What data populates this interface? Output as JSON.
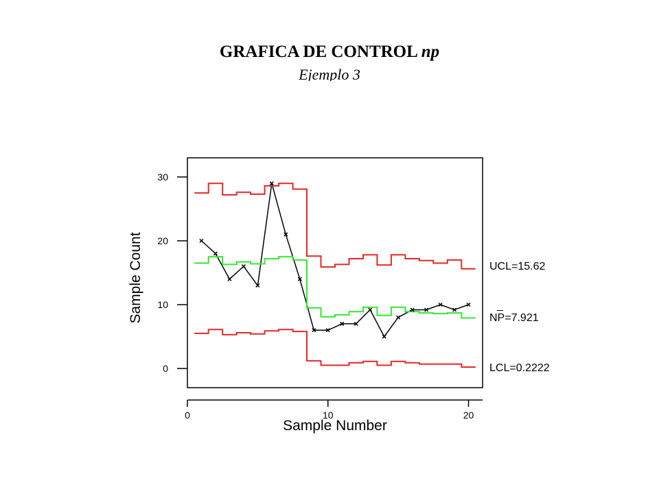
{
  "title": {
    "main": "GRAFICA DE CONTROL",
    "main_italic": "np",
    "subtitle": "Ejemplo 3"
  },
  "chart_data": {
    "type": "line",
    "title": "GRAFICA DE CONTROL np",
    "subtitle": "Ejemplo 3",
    "xlabel": "Sample Number",
    "ylabel": "Sample Count",
    "xlim": [
      0,
      21
    ],
    "ylim": [
      -3,
      33
    ],
    "x_ticks": [
      0,
      10,
      20
    ],
    "y_ticks": [
      0,
      10,
      20,
      30
    ],
    "grid": false,
    "x": [
      1,
      2,
      3,
      4,
      5,
      6,
      7,
      8,
      9,
      10,
      11,
      12,
      13,
      14,
      15,
      16,
      17,
      18,
      19,
      20
    ],
    "series": [
      {
        "values": [
          20,
          18,
          14,
          16,
          13,
          29,
          21,
          14,
          6,
          6,
          7,
          7,
          9.2,
          5,
          8,
          9.2,
          9.2,
          10,
          9.2,
          10
        ],
        "color": "#000000",
        "marker": "x"
      },
      {
        "values": [
          27.5,
          29,
          27.2,
          27.6,
          27.3,
          28.6,
          29,
          28.1,
          17.6,
          15.9,
          16.3,
          17.2,
          17.8,
          16.2,
          17.8,
          17.2,
          16.9,
          16.5,
          17,
          15.62
        ],
        "color": "#e32727",
        "step": true
      },
      {
        "values": [
          16.5,
          17.5,
          16.3,
          16.7,
          16.4,
          17.2,
          17.5,
          17,
          9.5,
          8.1,
          8.4,
          8.9,
          9.6,
          8.3,
          9.6,
          8.9,
          8.7,
          8.6,
          8.7,
          7.921
        ],
        "color": "#33e633",
        "step": true
      },
      {
        "values": [
          5.5,
          6.1,
          5.3,
          5.6,
          5.4,
          5.9,
          6.1,
          5.8,
          1.2,
          0.5,
          0.5,
          0.9,
          1.1,
          0.5,
          1.1,
          0.9,
          0.7,
          0.7,
          0.7,
          0.2222
        ],
        "color": "#e32727",
        "step": true
      }
    ],
    "labels": {
      "ucl": "UCL=15.62",
      "center_bar": "_",
      "center": "NP=7.921",
      "lcl": "LCL=0.2222"
    }
  }
}
